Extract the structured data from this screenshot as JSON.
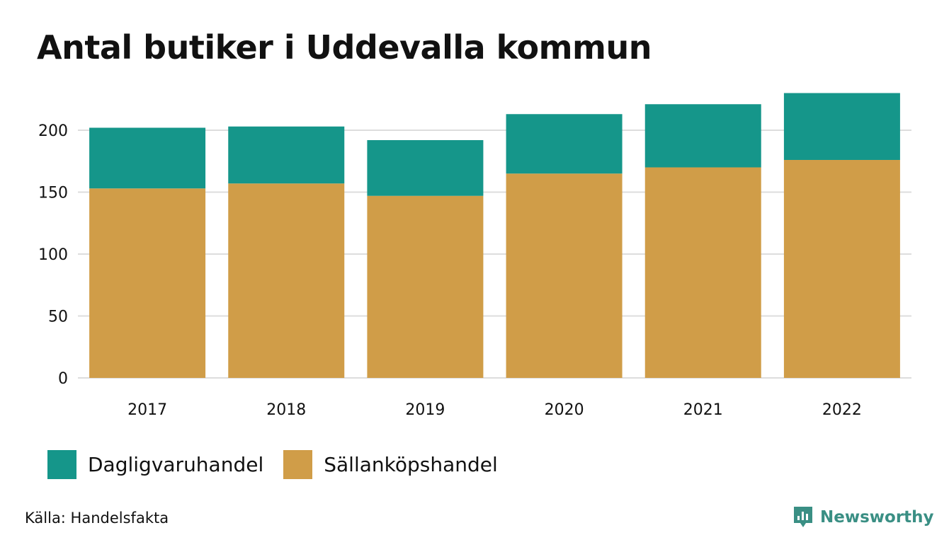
{
  "title": "Antal butiker i Uddevalla kommun",
  "source": "Källa: Handelsfakta",
  "brand": {
    "name": "Newsworthy",
    "icon": "newsworthy-logo-icon",
    "color": "#3a8f84"
  },
  "chart_data": {
    "type": "bar",
    "stacked": true,
    "title": "Antal butiker i Uddevalla kommun",
    "xlabel": "",
    "ylabel": "",
    "categories": [
      "2017",
      "2018",
      "2019",
      "2020",
      "2021",
      "2022"
    ],
    "series": [
      {
        "name": "Sällanköpshandel",
        "color": "#d09d48",
        "values": [
          153,
          157,
          147,
          165,
          170,
          176
        ]
      },
      {
        "name": "Dagligvaruhandel",
        "color": "#15968a",
        "values": [
          49,
          46,
          45,
          48,
          51,
          54
        ]
      }
    ],
    "legend_order": [
      "Dagligvaruhandel",
      "Sällanköpshandel"
    ],
    "ylim": [
      0,
      230
    ],
    "yticks": [
      0,
      50,
      100,
      150,
      200
    ],
    "grid": true,
    "legend_position": "bottom-left"
  }
}
